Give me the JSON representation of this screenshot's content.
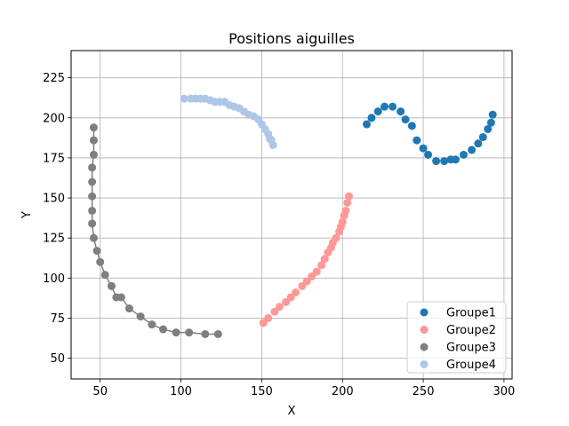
{
  "chart_data": {
    "type": "scatter",
    "title": "Positions aiguilles",
    "xlabel": "X",
    "ylabel": "Y",
    "xlim": [
      32,
      305
    ],
    "ylim": [
      37,
      242
    ],
    "xticks": [
      50,
      100,
      150,
      200,
      250,
      300
    ],
    "yticks": [
      50,
      75,
      100,
      125,
      150,
      175,
      200,
      225
    ],
    "grid": true,
    "legend_position": "bottom-right",
    "series": [
      {
        "name": "Groupe1",
        "color": "#1f77b4",
        "line": false,
        "x": [
          215,
          218,
          222,
          226,
          231,
          236,
          239,
          243,
          246,
          250,
          253,
          258,
          263,
          267,
          270,
          275,
          280,
          284,
          287,
          290,
          292,
          293
        ],
        "y": [
          196,
          200,
          204,
          207,
          207,
          204,
          199,
          195,
          186,
          181,
          177,
          173,
          173,
          174,
          174,
          177,
          180,
          184,
          188,
          193,
          197,
          202
        ]
      },
      {
        "name": "Groupe2",
        "color": "#ff9896",
        "line": false,
        "x": [
          151,
          154,
          158,
          161,
          165,
          168,
          171,
          175,
          178,
          181,
          184,
          187,
          189,
          191,
          193,
          194,
          196,
          198,
          199,
          200,
          201,
          202,
          203,
          204
        ],
        "y": [
          72,
          75,
          79,
          82,
          85,
          88,
          91,
          95,
          98,
          101,
          104,
          108,
          112,
          116,
          119,
          122,
          125,
          129,
          132,
          135,
          139,
          142,
          147,
          151
        ]
      },
      {
        "name": "Groupe3",
        "color": "#7f7f7f",
        "line": true,
        "x": [
          46,
          46,
          46,
          45,
          45,
          45,
          45,
          45,
          46,
          48,
          50,
          53,
          57,
          60,
          63,
          68,
          75,
          82,
          89,
          97,
          105,
          115,
          123
        ],
        "y": [
          194,
          186,
          177,
          169,
          160,
          151,
          142,
          134,
          125,
          117,
          110,
          102,
          95,
          88,
          88,
          81,
          76,
          71,
          68,
          66,
          66,
          65,
          65
        ]
      },
      {
        "name": "Groupe4",
        "color": "#aec7e8",
        "line": true,
        "x": [
          102,
          106,
          109,
          112,
          115,
          118,
          121,
          124,
          127,
          130,
          133,
          136,
          139,
          142,
          145,
          148,
          150,
          152,
          154,
          155,
          156,
          157
        ],
        "y": [
          212,
          212,
          212,
          212,
          212,
          211,
          210,
          210,
          210,
          208,
          207,
          206,
          204,
          202,
          201,
          199,
          196,
          193,
          190,
          187,
          186,
          183
        ]
      }
    ]
  }
}
